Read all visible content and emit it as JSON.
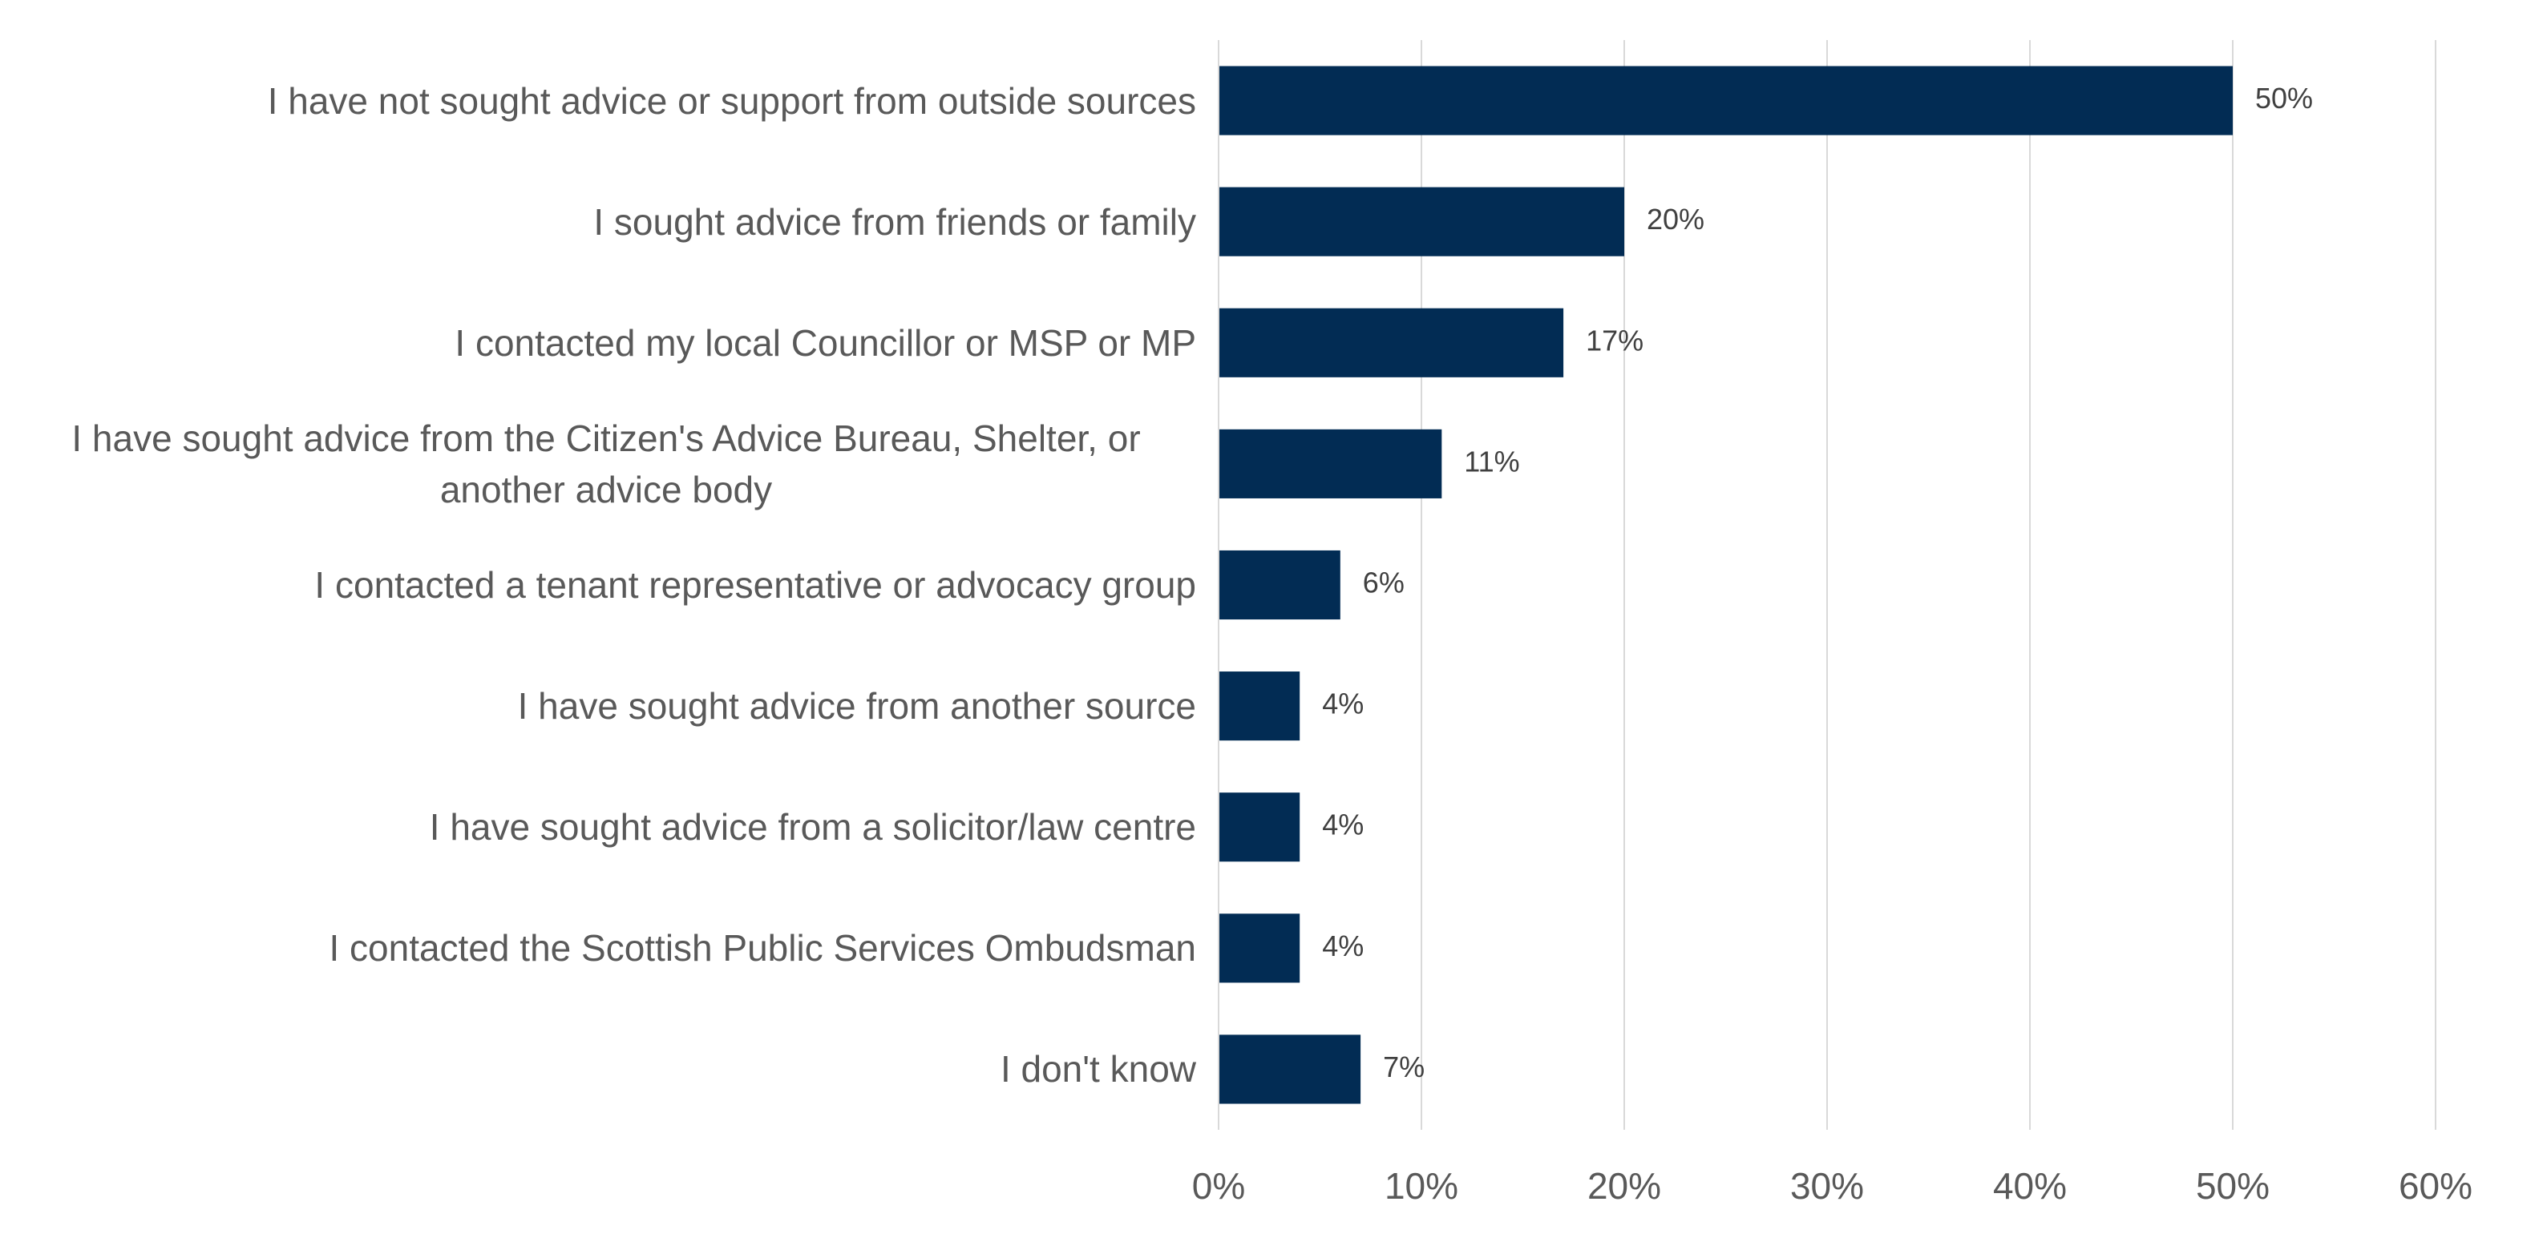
{
  "chart_data": {
    "type": "hbar",
    "categories": [
      "I have not sought advice or support from outside sources",
      "I sought advice from friends or family",
      "I contacted my local Councillor or MSP or MP",
      "I have sought advice from the Citizen's Advice Bureau, Shelter, or another advice body",
      "I contacted a tenant representative or advocacy group",
      "I have sought advice from another source",
      "I have sought advice from a solicitor/law centre",
      "I contacted the Scottish Public Services Ombudsman",
      "I don't know"
    ],
    "values": [
      50,
      20,
      17,
      11,
      6,
      4,
      4,
      4,
      7
    ],
    "value_labels": [
      "50%",
      "20%",
      "17%",
      "11%",
      "6%",
      "4%",
      "4%",
      "4%",
      "7%"
    ],
    "color": "#022c54",
    "xlim": [
      0,
      60
    ],
    "xticks": [
      {
        "value": 0,
        "label": "0%"
      },
      {
        "value": 10,
        "label": "10%"
      },
      {
        "value": 20,
        "label": "20%"
      },
      {
        "value": 30,
        "label": "30%"
      },
      {
        "value": 40,
        "label": "40%"
      },
      {
        "value": 50,
        "label": "50%"
      },
      {
        "value": 60,
        "label": "60%"
      }
    ],
    "grid": true
  }
}
